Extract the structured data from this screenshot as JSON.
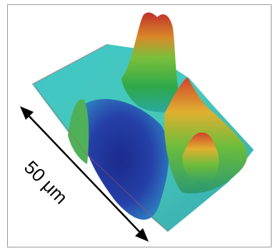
{
  "scale_label": "50 μm"
}
